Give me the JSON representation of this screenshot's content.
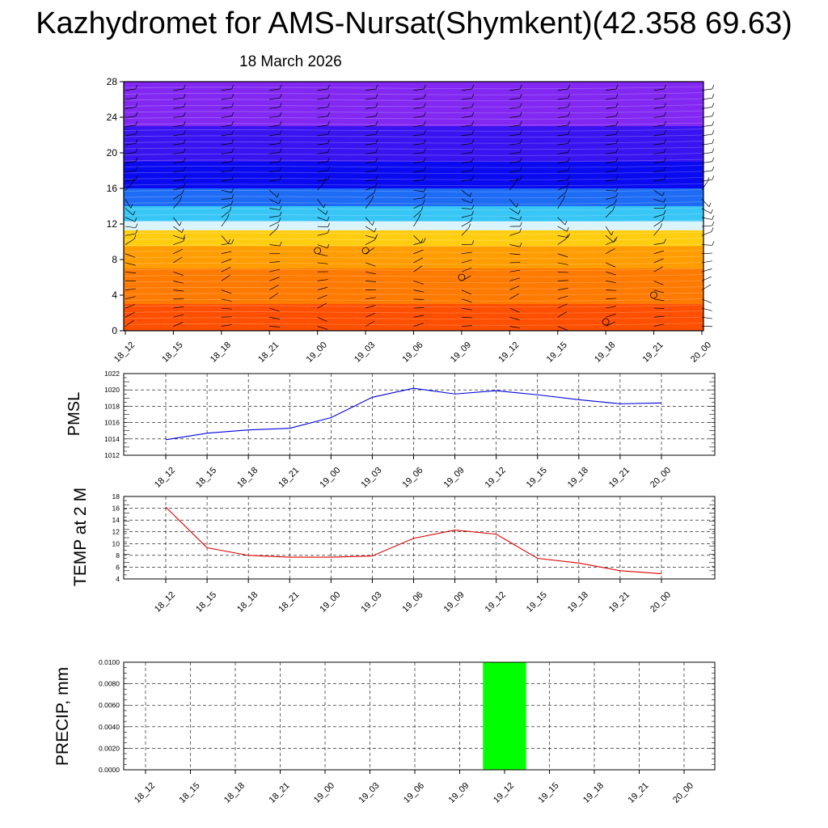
{
  "header": {
    "title": "Kazhydromet for AMS-Nursat(Shymkent)(42.358 69.63)",
    "subtitle": "18 March 2026"
  },
  "chart_data": [
    {
      "id": "cross-section",
      "type": "heatmap",
      "title": "",
      "xlabel": "",
      "ylabel": "",
      "x_tick_labels": [
        "18_12",
        "18_15",
        "18_18",
        "18_21",
        "19_00",
        "19_03",
        "19_06",
        "19_09",
        "19_12",
        "19_15",
        "19_18",
        "19_21",
        "20_00"
      ],
      "y_ticks": [
        0,
        4,
        8,
        12,
        16,
        20,
        24,
        28
      ],
      "ylim": [
        0,
        28
      ],
      "layers": [
        {
          "y_from": 0,
          "y_to": 3,
          "color": "#ff4f00"
        },
        {
          "y_from": 3,
          "y_to": 7,
          "color": "#ff7a00"
        },
        {
          "y_from": 7,
          "y_to": 9.5,
          "color": "#ff9d00"
        },
        {
          "y_from": 9.5,
          "y_to": 11.3,
          "color": "#ffcd10"
        },
        {
          "y_from": 11.3,
          "y_to": 12.3,
          "color": "#d9f4ff"
        },
        {
          "y_from": 12.3,
          "y_to": 14,
          "color": "#37c6f5"
        },
        {
          "y_from": 14,
          "y_to": 16,
          "color": "#1e6cf5"
        },
        {
          "y_from": 16,
          "y_to": 19,
          "color": "#0a0af0"
        },
        {
          "y_from": 19,
          "y_to": 23,
          "color": "#3a14f0"
        },
        {
          "y_from": 23,
          "y_to": 28,
          "color": "#8228f2"
        }
      ],
      "grid": false
    },
    {
      "id": "pmsl",
      "type": "line",
      "ylabel": "PMSL",
      "xlabel": "",
      "categories": [
        "18_12",
        "18_15",
        "18_18",
        "18_21",
        "19_00",
        "19_03",
        "19_06",
        "19_09",
        "19_12",
        "19_15",
        "19_18",
        "19_21",
        "20_00"
      ],
      "series": [
        {
          "values": [
            1013.9,
            1014.7,
            1015.1,
            1015.3,
            1016.6,
            1019.1,
            1020.2,
            1019.5,
            1019.9,
            1019.4,
            1018.8,
            1018.3,
            1018.4
          ],
          "color": "#0000dd"
        }
      ],
      "y_ticks": [
        1012,
        1014,
        1016,
        1018,
        1020,
        1022
      ],
      "ylim": [
        1012,
        1022
      ],
      "grid": true
    },
    {
      "id": "temp",
      "type": "line",
      "ylabel": "TEMP at 2 M",
      "xlabel": "",
      "categories": [
        "18_12",
        "18_15",
        "18_18",
        "18_21",
        "19_00",
        "19_03",
        "19_06",
        "19_09",
        "19_12",
        "19_15",
        "19_18",
        "19_21",
        "20_00"
      ],
      "series": [
        {
          "values": [
            16.2,
            9.3,
            8.0,
            7.7,
            7.7,
            7.9,
            10.9,
            12.3,
            11.6,
            7.5,
            6.7,
            5.4,
            4.9
          ],
          "color": "#dd0000"
        }
      ],
      "y_ticks": [
        4,
        6,
        8,
        10,
        12,
        14,
        16,
        18
      ],
      "ylim": [
        4,
        18
      ],
      "grid": true
    },
    {
      "id": "precip",
      "type": "bar",
      "ylabel": "PRECIP, mm",
      "xlabel": "",
      "categories": [
        "18_12",
        "18_15",
        "18_18",
        "18_21",
        "19_00",
        "19_03",
        "19_06",
        "19_09",
        "19_12",
        "19_15",
        "19_18",
        "19_21",
        "20_00"
      ],
      "values": [
        0,
        0,
        0,
        0,
        0,
        0,
        0,
        0,
        0.01,
        0,
        0,
        0,
        0
      ],
      "bar_color": "#00ff00",
      "y_ticks": [
        "0.0000",
        "0.0020",
        "0.0040",
        "0.0060",
        "0.0080",
        "0.0100"
      ],
      "ylim": [
        0,
        0.01
      ],
      "grid": true
    }
  ]
}
